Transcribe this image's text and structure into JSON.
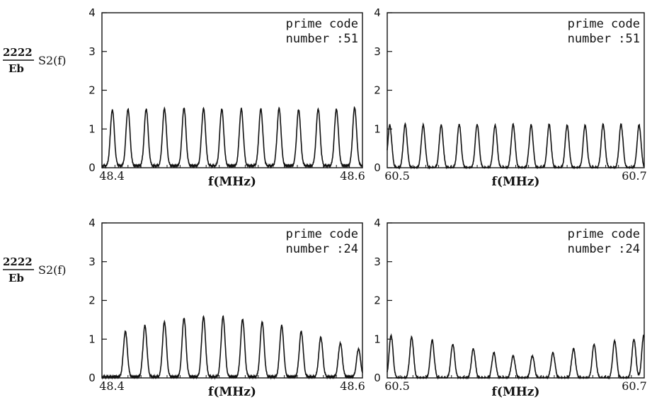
{
  "y_label": {
    "numerator": "2222",
    "denominator": "Eb",
    "function": "S2(f)"
  },
  "chart_data": [
    {
      "type": "line",
      "x_start_label": "48.4",
      "x_end_label": "48.6",
      "xlabel": "f(MHz)",
      "ylim": [
        0,
        4
      ],
      "yticks": [
        "0",
        "1",
        "2",
        "3",
        "4"
      ],
      "annotation": [
        "prime code",
        "number :51"
      ],
      "baseline": 0.05,
      "series": [
        {
          "peaks": [
            0.04,
            0.1,
            0.17,
            0.24,
            0.315,
            0.39,
            0.46,
            0.535,
            0.61,
            0.68,
            0.755,
            0.83,
            0.9,
            0.97
          ],
          "values": [
            1.5,
            1.52,
            1.52,
            1.53,
            1.55,
            1.53,
            1.52,
            1.52,
            1.52,
            1.53,
            1.5,
            1.52,
            1.52,
            1.55
          ]
        }
      ],
      "color": "#111111"
    },
    {
      "type": "line",
      "x_start_label": "60.5",
      "x_end_label": "60.7",
      "xlabel": "f(MHz)",
      "ylim": [
        0,
        4
      ],
      "yticks": [
        "0",
        "1",
        "2",
        "3",
        "4"
      ],
      "annotation": [
        "prime code",
        "number :51"
      ],
      "baseline": 0.0,
      "series": [
        {
          "peaks": [
            0.01,
            0.07,
            0.14,
            0.21,
            0.28,
            0.35,
            0.42,
            0.49,
            0.56,
            0.63,
            0.7,
            0.77,
            0.84,
            0.91,
            0.98
          ],
          "values": [
            1.1,
            1.12,
            1.1,
            1.1,
            1.12,
            1.12,
            1.1,
            1.12,
            1.1,
            1.12,
            1.1,
            1.1,
            1.12,
            1.12,
            1.1
          ]
        }
      ],
      "color": "#111111"
    },
    {
      "type": "line",
      "x_start_label": "48.4",
      "x_end_label": "48.6",
      "xlabel": "f(MHz)",
      "ylim": [
        0,
        4
      ],
      "yticks": [
        "0",
        "1",
        "2",
        "3",
        "4"
      ],
      "annotation": [
        "prime code",
        "number :24"
      ],
      "baseline": 0.03,
      "series": [
        {
          "peaks": [
            0.09,
            0.165,
            0.24,
            0.315,
            0.39,
            0.465,
            0.54,
            0.615,
            0.69,
            0.765,
            0.84,
            0.915,
            0.985
          ],
          "values": [
            1.2,
            1.35,
            1.45,
            1.55,
            1.58,
            1.58,
            1.52,
            1.45,
            1.35,
            1.2,
            1.05,
            0.9,
            0.75
          ]
        }
      ],
      "color": "#111111"
    },
    {
      "type": "line",
      "x_start_label": "60.5",
      "x_end_label": "60.7",
      "xlabel": "f(MHz)",
      "ylim": [
        0,
        4
      ],
      "yticks": [
        "0",
        "1",
        "2",
        "3",
        "4"
      ],
      "annotation": [
        "prime code",
        "number :24"
      ],
      "baseline": 0.0,
      "series": [
        {
          "peaks": [
            0.015,
            0.095,
            0.175,
            0.255,
            0.335,
            0.415,
            0.49,
            0.565,
            0.645,
            0.725,
            0.805,
            0.885,
            0.96,
            0.998
          ],
          "values": [
            1.1,
            1.05,
            0.97,
            0.87,
            0.75,
            0.65,
            0.57,
            0.57,
            0.65,
            0.75,
            0.87,
            0.95,
            1.0,
            1.1
          ]
        }
      ],
      "color": "#111111"
    }
  ]
}
